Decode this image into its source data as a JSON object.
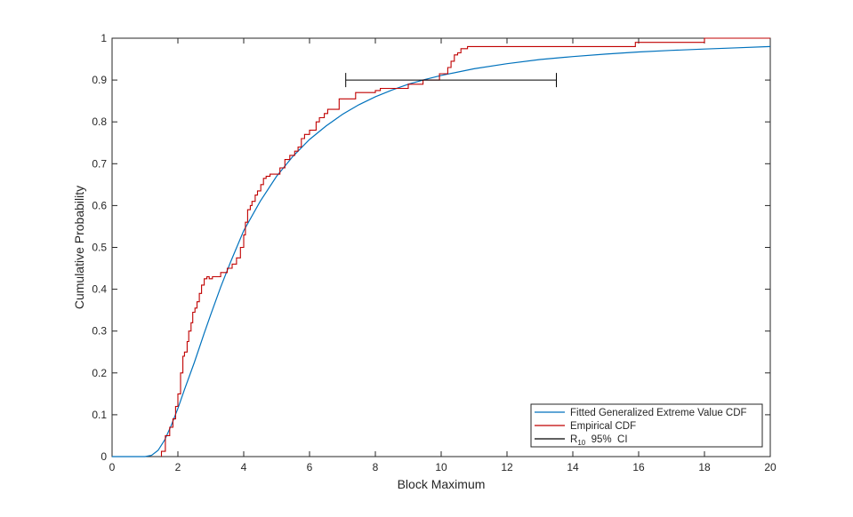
{
  "chart_data": {
    "type": "line",
    "title": "",
    "xlabel": "Block Maximum",
    "ylabel": "Cumulative Probability",
    "xlim": [
      0,
      20
    ],
    "ylim": [
      0,
      1
    ],
    "xticks": [
      0,
      2,
      4,
      6,
      8,
      10,
      12,
      14,
      16,
      18,
      20
    ],
    "yticks": [
      0,
      0.1,
      0.2,
      0.3,
      0.4,
      0.5,
      0.6,
      0.7,
      0.8,
      0.9,
      1
    ],
    "grid": false,
    "legend_position": "bottom-right",
    "series": [
      {
        "name": "Fitted Generalized Extreme Value CDF",
        "kind": "line",
        "color": "#0072BD",
        "x": [
          0,
          0.5,
          1.0,
          1.2,
          1.4,
          1.6,
          1.8,
          2.0,
          2.2,
          2.5,
          2.8,
          3.0,
          3.3,
          3.6,
          4.0,
          4.5,
          5.0,
          5.5,
          6.0,
          6.5,
          7.0,
          7.5,
          8.0,
          8.5,
          9.0,
          9.5,
          10.0,
          11.0,
          12.0,
          13.0,
          14.0,
          15.0,
          16.0,
          17.0,
          18.0,
          19.0,
          20.0
        ],
        "y": [
          0,
          0,
          0,
          0.003,
          0.015,
          0.04,
          0.075,
          0.115,
          0.16,
          0.225,
          0.295,
          0.34,
          0.405,
          0.465,
          0.54,
          0.61,
          0.67,
          0.718,
          0.758,
          0.79,
          0.818,
          0.841,
          0.86,
          0.876,
          0.89,
          0.901,
          0.911,
          0.927,
          0.939,
          0.949,
          0.956,
          0.962,
          0.967,
          0.971,
          0.974,
          0.977,
          0.98
        ]
      },
      {
        "name": "Empirical CDF",
        "kind": "step",
        "color": "#C00000",
        "x": [
          1.5,
          1.62,
          1.75,
          1.85,
          1.93,
          2.0,
          2.08,
          2.15,
          2.2,
          2.28,
          2.33,
          2.4,
          2.45,
          2.52,
          2.58,
          2.65,
          2.72,
          2.8,
          2.88,
          2.95,
          3.05,
          3.3,
          3.5,
          3.65,
          3.78,
          3.9,
          4.0,
          4.05,
          4.12,
          4.2,
          4.25,
          4.35,
          4.42,
          4.52,
          4.6,
          4.68,
          4.8,
          5.1,
          5.25,
          5.4,
          5.55,
          5.65,
          5.75,
          5.85,
          6.0,
          6.2,
          6.3,
          6.45,
          6.55,
          6.9,
          7.4,
          8.0,
          8.15,
          9.0,
          9.45,
          9.95,
          10.2,
          10.3,
          10.4,
          10.5,
          10.6,
          10.8,
          15.9,
          18.0
        ],
        "y": [
          0.0125,
          0.05,
          0.07,
          0.09,
          0.12,
          0.15,
          0.2,
          0.24,
          0.25,
          0.275,
          0.3,
          0.32,
          0.345,
          0.355,
          0.37,
          0.39,
          0.41,
          0.425,
          0.43,
          0.425,
          0.43,
          0.44,
          0.45,
          0.46,
          0.475,
          0.5,
          0.53,
          0.56,
          0.59,
          0.6,
          0.61,
          0.625,
          0.635,
          0.65,
          0.665,
          0.67,
          0.675,
          0.69,
          0.71,
          0.72,
          0.73,
          0.74,
          0.76,
          0.77,
          0.78,
          0.8,
          0.81,
          0.82,
          0.83,
          0.855,
          0.87,
          0.875,
          0.88,
          0.89,
          0.9,
          0.915,
          0.93,
          0.945,
          0.96,
          0.965,
          0.975,
          0.98,
          0.99,
          1.0
        ]
      },
      {
        "name": "R10  95%  CI",
        "legend_main": "R",
        "legend_sub": "10",
        "legend_rest": "  95%  CI",
        "kind": "errorbar",
        "color": "#000000",
        "x_low": 7.1,
        "x_high": 13.5,
        "y": 0.9
      }
    ]
  }
}
